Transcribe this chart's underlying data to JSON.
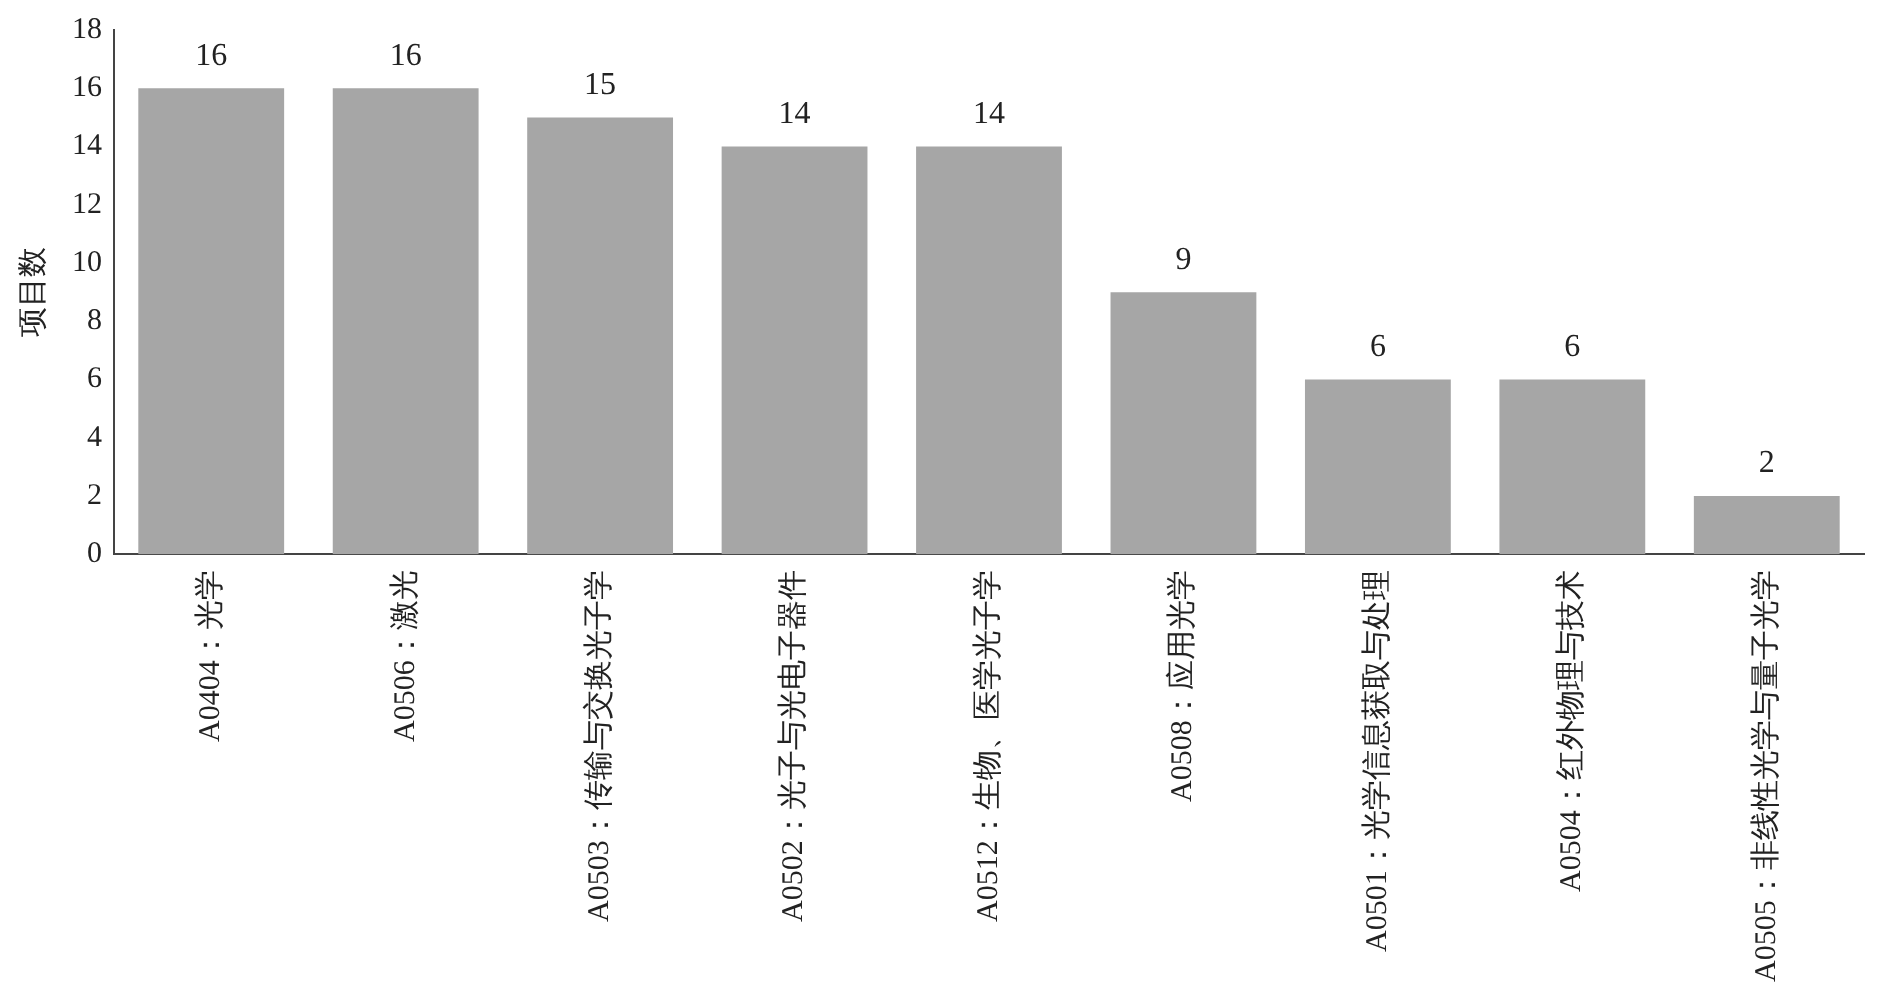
{
  "chart_data": {
    "type": "bar",
    "ylabel": "项目数",
    "categories": [
      "A0404：光学",
      "A0506：激光",
      "A0503：传输与交换光子学",
      "A0502：光子与光电子器件",
      "A0512：生物、医学光子学",
      "A0508：应用光学",
      "A0501：光学信息获取与处理",
      "A0504：红外物理与技术",
      "A0505：非线性光学与量子光学"
    ],
    "values": [
      16,
      16,
      15,
      14,
      14,
      9,
      6,
      6,
      2
    ],
    "color": "#a6a6a6",
    "ylim": [
      0,
      18
    ],
    "yticks": [
      0,
      2,
      4,
      6,
      8,
      10,
      12,
      14,
      16,
      18
    ],
    "grid": false,
    "legend": false,
    "data_labels": true
  }
}
